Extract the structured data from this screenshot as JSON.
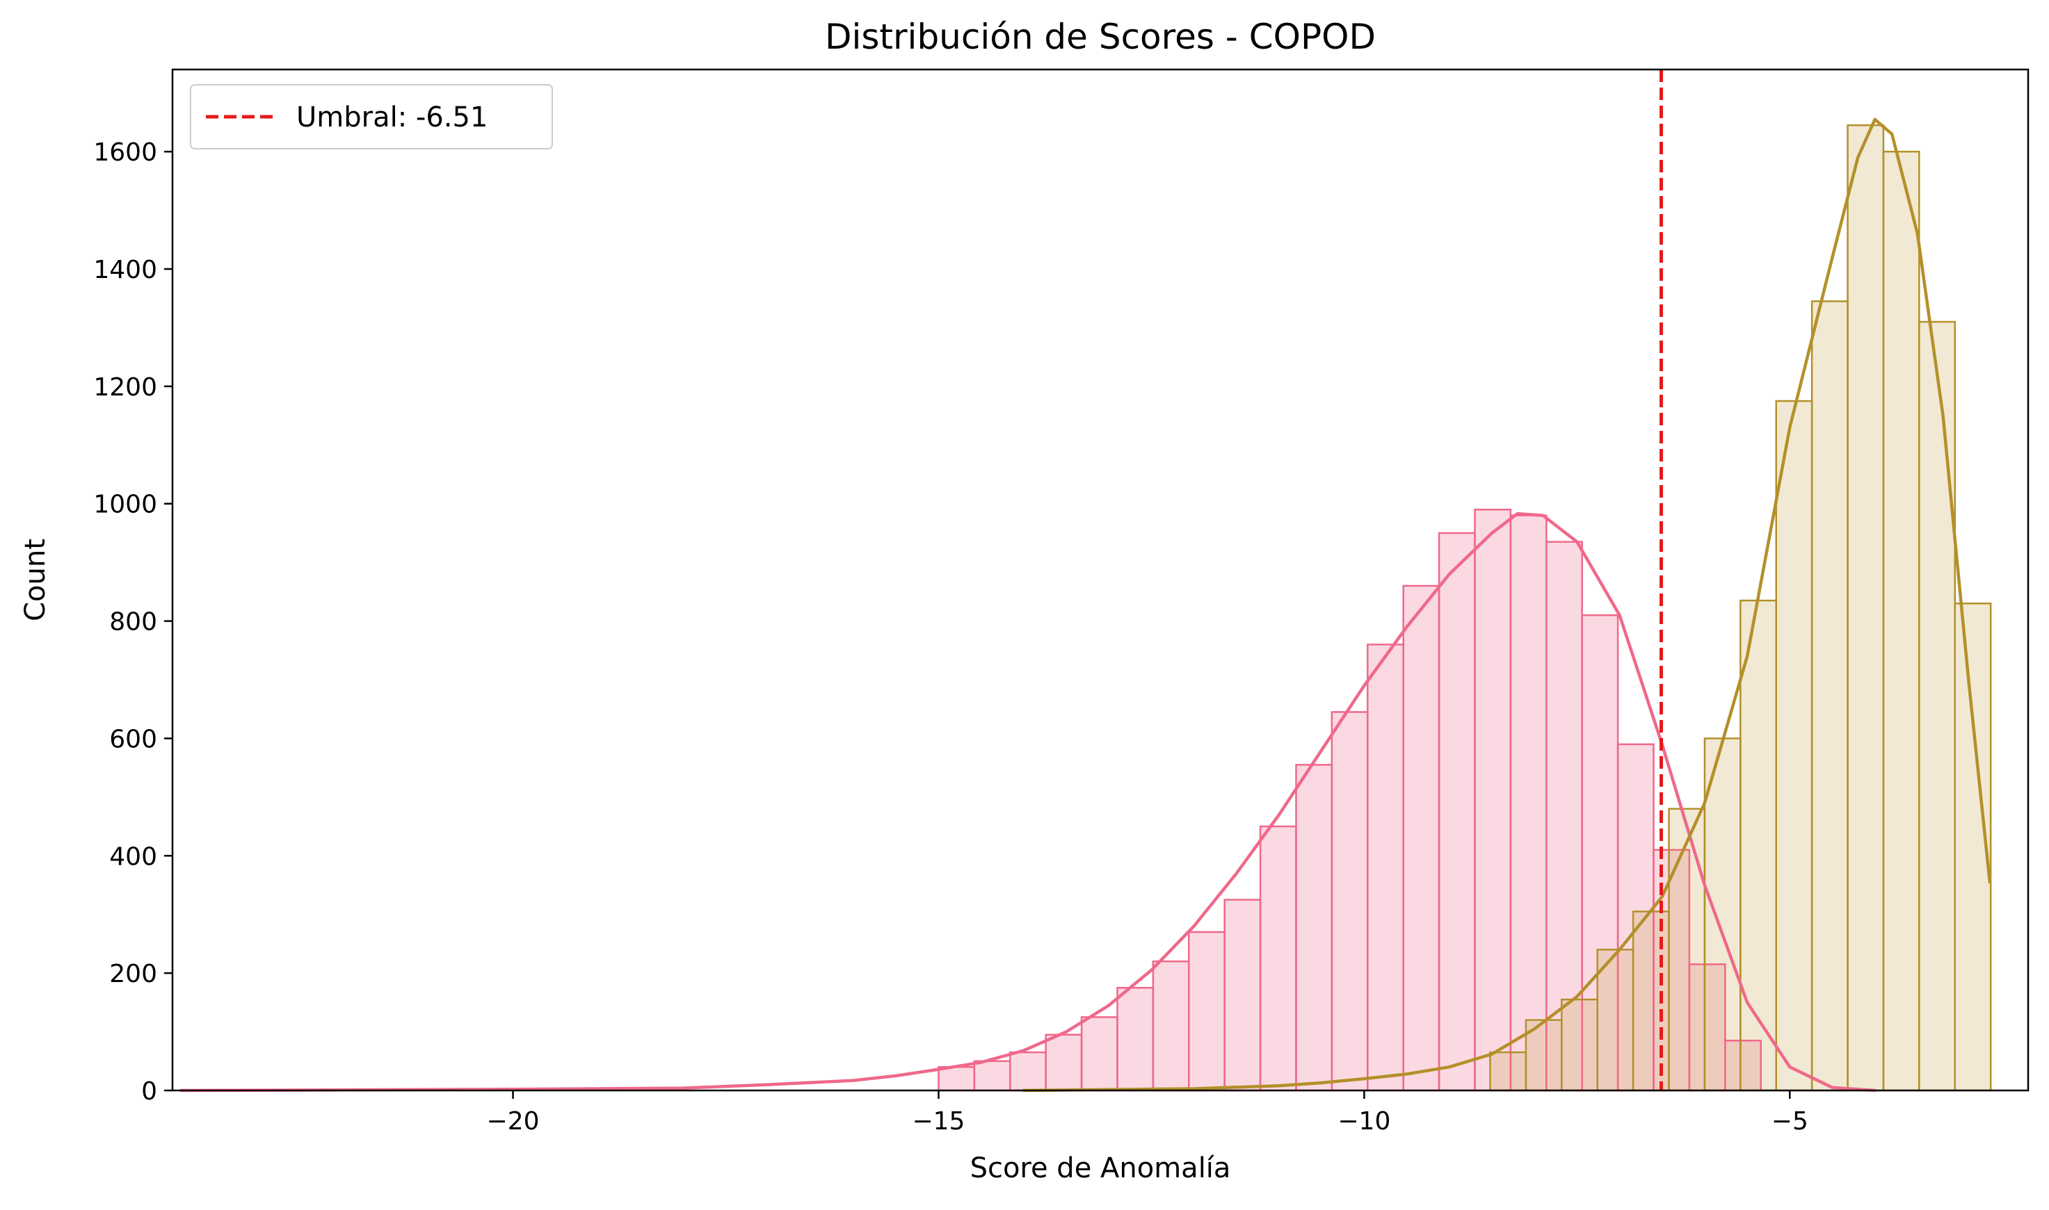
{
  "chart_data": {
    "type": "histogram",
    "title": "Distribución de Scores - COPOD",
    "xlabel": "Score de Anomalía",
    "ylabel": "Count",
    "xlim": [
      -24.0,
      -2.2
    ],
    "ylim": [
      0,
      1740
    ],
    "xticks": [
      -20,
      -15,
      -10,
      -5
    ],
    "xtick_labels": [
      "−20",
      "−15",
      "−10",
      "−5"
    ],
    "yticks": [
      0,
      200,
      400,
      600,
      800,
      1000,
      1200,
      1400,
      1600
    ],
    "ytick_labels": [
      "0",
      "200",
      "400",
      "600",
      "800",
      "1000",
      "1200",
      "1400",
      "1600"
    ],
    "grid": false,
    "legend_position": "top-left",
    "threshold": {
      "value": -6.51,
      "label": "Umbral: -6.51",
      "color": "#e41a1c",
      "style": "dashed"
    },
    "series": [
      {
        "color": "#f0688a",
        "fill": "#f0688a",
        "bins": [
          {
            "x0": -15.0,
            "x1": -14.58,
            "count": 40
          },
          {
            "x0": -14.58,
            "x1": -14.16,
            "count": 50
          },
          {
            "x0": -14.16,
            "x1": -13.74,
            "count": 65
          },
          {
            "x0": -13.74,
            "x1": -13.32,
            "count": 95
          },
          {
            "x0": -13.32,
            "x1": -12.9,
            "count": 125
          },
          {
            "x0": -12.9,
            "x1": -12.48,
            "count": 175
          },
          {
            "x0": -12.48,
            "x1": -12.06,
            "count": 220
          },
          {
            "x0": -12.06,
            "x1": -11.64,
            "count": 270
          },
          {
            "x0": -11.64,
            "x1": -11.22,
            "count": 325
          },
          {
            "x0": -11.22,
            "x1": -10.8,
            "count": 450
          },
          {
            "x0": -10.8,
            "x1": -10.38,
            "count": 555
          },
          {
            "x0": -10.38,
            "x1": -9.96,
            "count": 645
          },
          {
            "x0": -9.96,
            "x1": -9.54,
            "count": 760
          },
          {
            "x0": -9.54,
            "x1": -9.12,
            "count": 860
          },
          {
            "x0": -9.12,
            "x1": -8.7,
            "count": 950
          },
          {
            "x0": -8.7,
            "x1": -8.28,
            "count": 990
          },
          {
            "x0": -8.28,
            "x1": -7.86,
            "count": 980
          },
          {
            "x0": -7.86,
            "x1": -7.44,
            "count": 935
          },
          {
            "x0": -7.44,
            "x1": -7.02,
            "count": 810
          },
          {
            "x0": -7.02,
            "x1": -6.6,
            "count": 590
          },
          {
            "x0": -6.6,
            "x1": -6.18,
            "count": 410
          },
          {
            "x0": -6.18,
            "x1": -5.76,
            "count": 215
          },
          {
            "x0": -5.76,
            "x1": -5.34,
            "count": 85
          }
        ],
        "kde": [
          [
            -23.9,
            0
          ],
          [
            -22,
            1
          ],
          [
            -20,
            2
          ],
          [
            -18,
            4
          ],
          [
            -17,
            10
          ],
          [
            -16,
            17
          ],
          [
            -15.5,
            25
          ],
          [
            -15,
            36
          ],
          [
            -14.5,
            48
          ],
          [
            -14,
            68
          ],
          [
            -13.5,
            100
          ],
          [
            -13,
            145
          ],
          [
            -12.5,
            205
          ],
          [
            -12,
            280
          ],
          [
            -11.5,
            370
          ],
          [
            -11,
            470
          ],
          [
            -10.5,
            580
          ],
          [
            -10,
            690
          ],
          [
            -9.5,
            790
          ],
          [
            -9,
            880
          ],
          [
            -8.5,
            950
          ],
          [
            -8.2,
            983
          ],
          [
            -7.9,
            980
          ],
          [
            -7.5,
            935
          ],
          [
            -7,
            810
          ],
          [
            -6.5,
            590
          ],
          [
            -6,
            350
          ],
          [
            -5.5,
            150
          ],
          [
            -5,
            40
          ],
          [
            -4.5,
            5
          ],
          [
            -4,
            0
          ]
        ]
      },
      {
        "color": "#b39029",
        "fill": "#c8a951",
        "bins": [
          {
            "x0": -8.52,
            "x1": -8.1,
            "count": 65
          },
          {
            "x0": -8.1,
            "x1": -7.68,
            "count": 120
          },
          {
            "x0": -7.68,
            "x1": -7.26,
            "count": 155
          },
          {
            "x0": -7.26,
            "x1": -6.84,
            "count": 240
          },
          {
            "x0": -6.84,
            "x1": -6.42,
            "count": 305
          },
          {
            "x0": -6.42,
            "x1": -6.0,
            "count": 480
          },
          {
            "x0": -6.0,
            "x1": -5.58,
            "count": 600
          },
          {
            "x0": -5.58,
            "x1": -5.16,
            "count": 835
          },
          {
            "x0": -5.16,
            "x1": -4.74,
            "count": 1175
          },
          {
            "x0": -4.74,
            "x1": -4.32,
            "count": 1345
          },
          {
            "x0": -4.32,
            "x1": -3.9,
            "count": 1645
          },
          {
            "x0": -3.9,
            "x1": -3.48,
            "count": 1600
          },
          {
            "x0": -3.48,
            "x1": -3.06,
            "count": 1310
          },
          {
            "x0": -3.06,
            "x1": -2.64,
            "count": 830
          }
        ],
        "kde": [
          [
            -14,
            0
          ],
          [
            -12,
            3
          ],
          [
            -11,
            8
          ],
          [
            -10.5,
            13
          ],
          [
            -10,
            20
          ],
          [
            -9.5,
            28
          ],
          [
            -9,
            40
          ],
          [
            -8.5,
            62
          ],
          [
            -8,
            105
          ],
          [
            -7.5,
            160
          ],
          [
            -7,
            240
          ],
          [
            -6.5,
            330
          ],
          [
            -6,
            490
          ],
          [
            -5.5,
            740
          ],
          [
            -5,
            1130
          ],
          [
            -4.5,
            1420
          ],
          [
            -4.2,
            1590
          ],
          [
            -4.0,
            1655
          ],
          [
            -3.8,
            1630
          ],
          [
            -3.5,
            1460
          ],
          [
            -3.2,
            1150
          ],
          [
            -2.9,
            700
          ],
          [
            -2.65,
            355
          ]
        ]
      }
    ]
  }
}
